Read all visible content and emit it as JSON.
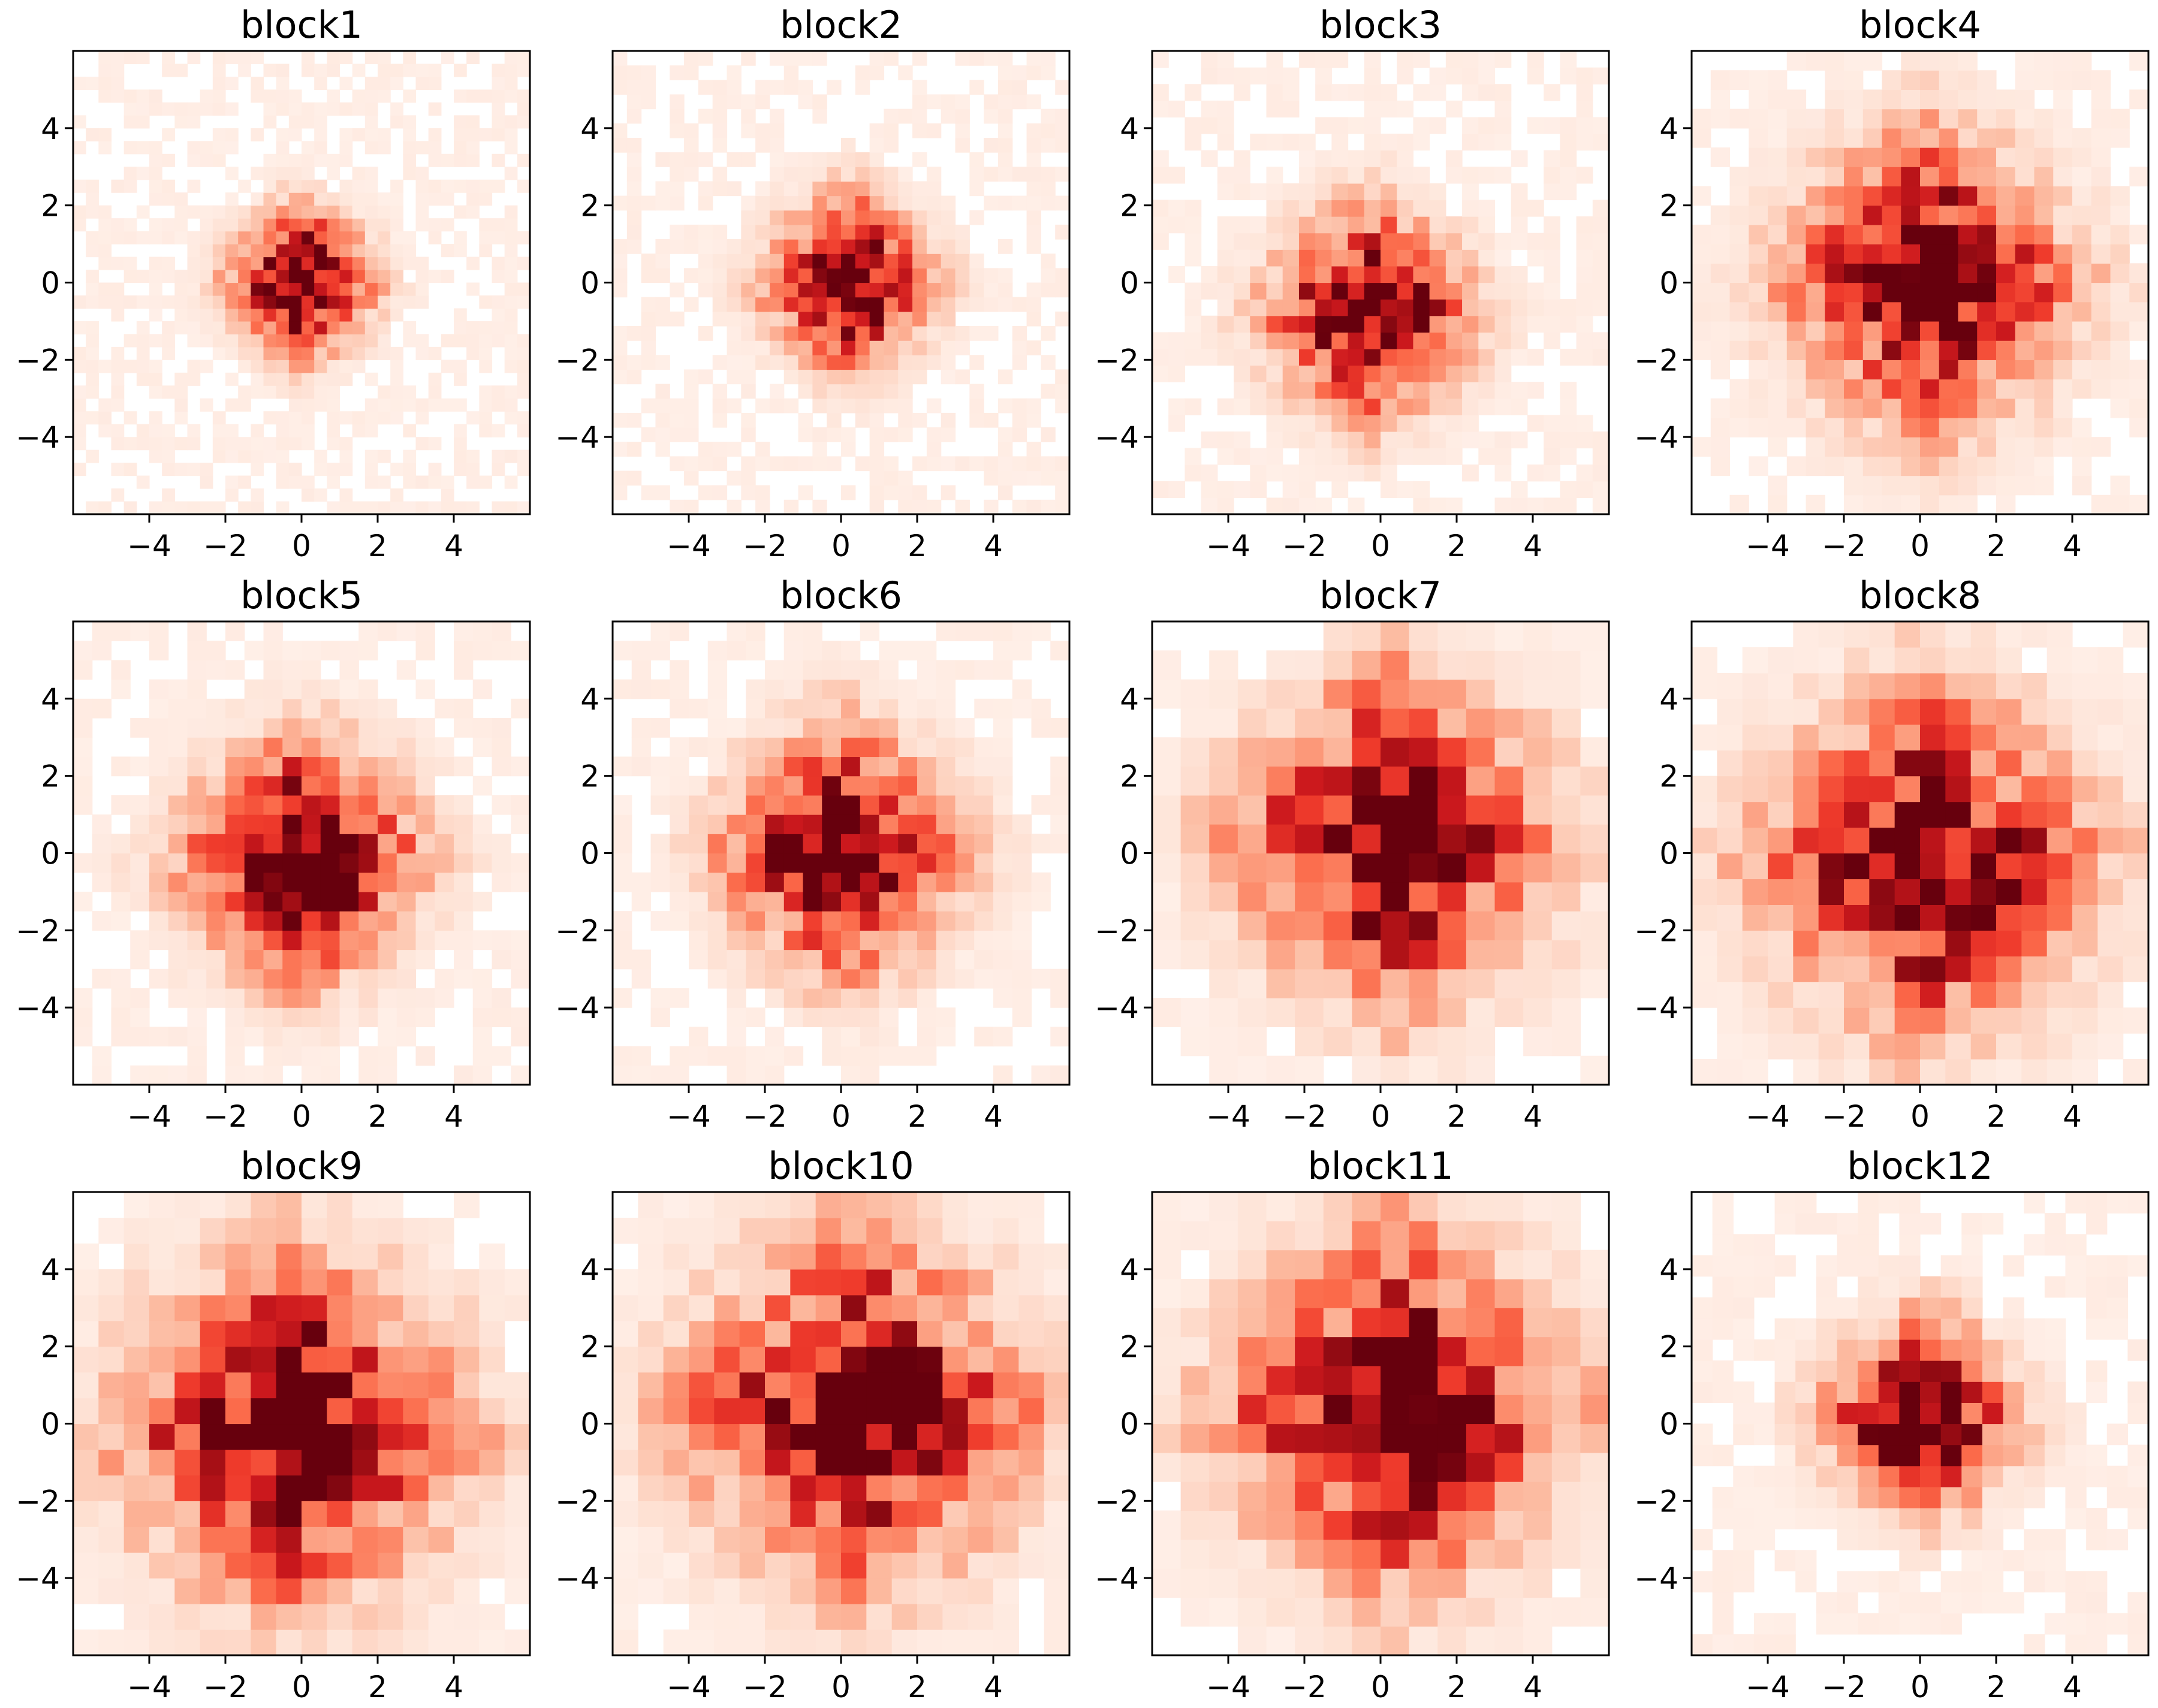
{
  "figure": {
    "background": "#ffffff"
  },
  "chart_data": {
    "type": "heatmap",
    "colormap": "Reds",
    "color_range": [
      "#fff5f0",
      "#67000d"
    ],
    "layout_grid": {
      "rows": 3,
      "cols": 4
    },
    "xlim": [
      -6,
      6
    ],
    "ylim": [
      -6,
      6
    ],
    "xticks": [
      -4,
      -2,
      0,
      2,
      4
    ],
    "yticks": [
      -4,
      -2,
      0,
      2,
      4
    ],
    "xtick_labels": [
      "−4",
      "−2",
      "0",
      "2",
      "4"
    ],
    "ytick_labels": [
      "−4",
      "−2",
      "0",
      "2",
      "4"
    ],
    "grid": false,
    "panels": [
      {
        "title": "block1",
        "bins": 36,
        "spread": 1.2,
        "peak": [
          0.0,
          0.0
        ]
      },
      {
        "title": "block2",
        "bins": 32,
        "spread": 1.4,
        "peak": [
          0.2,
          0.0
        ]
      },
      {
        "title": "block3",
        "bins": 28,
        "spread": 1.7,
        "peak": [
          -0.3,
          -0.8
        ]
      },
      {
        "title": "block4",
        "bins": 24,
        "spread": 2.4,
        "peak": [
          0.2,
          0.0
        ]
      },
      {
        "title": "block5",
        "bins": 24,
        "spread": 2.0,
        "peak": [
          0.0,
          -0.2
        ]
      },
      {
        "title": "block6",
        "bins": 24,
        "spread": 2.0,
        "peak": [
          0.0,
          0.0
        ]
      },
      {
        "title": "block7",
        "bins": 16,
        "spread": 2.7,
        "peak": [
          0.4,
          0.4
        ]
      },
      {
        "title": "block8",
        "bins": 18,
        "spread": 2.8,
        "peak": [
          0.2,
          -0.2
        ]
      },
      {
        "title": "block9",
        "bins": 18,
        "spread": 2.9,
        "peak": [
          -0.2,
          -0.2
        ]
      },
      {
        "title": "block10",
        "bins": 18,
        "spread": 2.9,
        "peak": [
          0.4,
          0.4
        ]
      },
      {
        "title": "block11",
        "bins": 16,
        "spread": 2.9,
        "peak": [
          0.4,
          0.4
        ]
      },
      {
        "title": "block12",
        "bins": 22,
        "spread": 1.6,
        "peak": [
          0.0,
          0.2
        ]
      }
    ]
  }
}
